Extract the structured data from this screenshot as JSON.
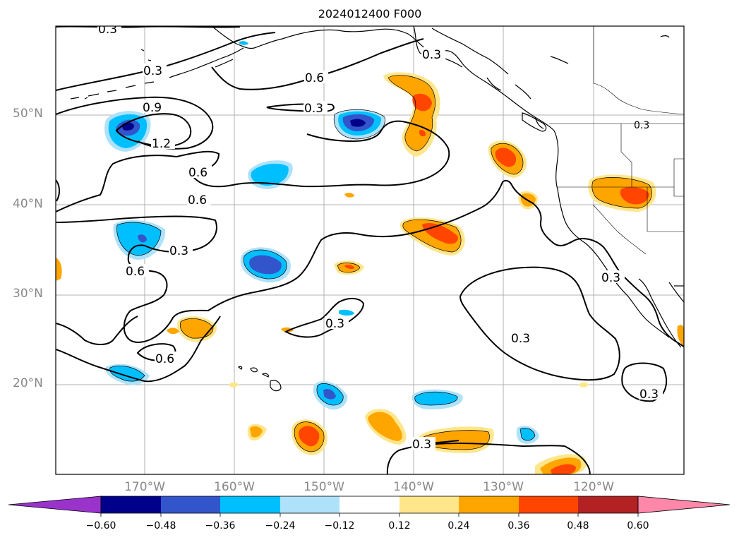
{
  "title": "2024012400 F000",
  "lat_labels": [
    "50°N",
    "40°N",
    "30°N",
    "20°N"
  ],
  "lon_labels": [
    "170°W",
    "160°W",
    "150°W",
    "140°W",
    "130°W",
    "120°W"
  ],
  "contour_labels": [
    "0.3",
    "0.3",
    "0.6",
    "0.3",
    "0.9",
    "1.2",
    "0.6",
    "0.6",
    "0.3",
    "0.6",
    "0.3",
    "0.6",
    "0.3",
    "0.3",
    "0.3",
    "0.3",
    "0.3",
    "0.3"
  ],
  "colorbar": {
    "ticks": [
      "−0.60",
      "−0.48",
      "−0.36",
      "−0.24",
      "−0.12",
      "0.12",
      "0.24",
      "0.36",
      "0.48",
      "0.60"
    ],
    "colors": [
      "#9933cc",
      "#00008b",
      "#3355cc",
      "#00bfff",
      "#aee2fa",
      "#ffffff",
      "#ffe68a",
      "#ffa500",
      "#ff4500",
      "#b22222",
      "#ff88aa"
    ]
  }
}
